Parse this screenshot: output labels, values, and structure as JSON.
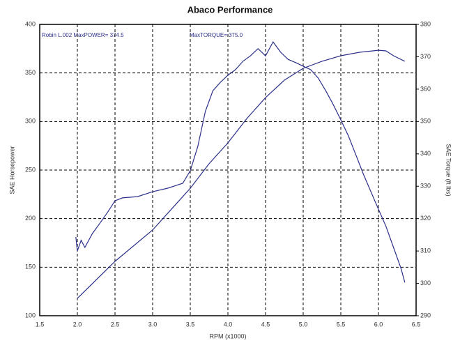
{
  "chart_data": {
    "type": "line",
    "title": "Abaco Performance",
    "x_label": "RPM (x1000)",
    "y_label": "SAE Horsepower",
    "y2_label": "SAE Torque (ft lbs)",
    "annotations": [
      "Robin L.002 MaxPOWER= 374.5",
      "MaxTORQUE= 375.0"
    ],
    "xlim": [
      1.5,
      6.5
    ],
    "xticks": [
      1.5,
      {
        "value": 2,
        "label": "2.0"
      },
      2.5,
      {
        "value": 3,
        "label": "3.0"
      },
      3.5,
      {
        "value": 4,
        "label": "4.0"
      },
      4.5,
      {
        "value": 5,
        "label": "5.0"
      },
      5.5,
      {
        "value": 6,
        "label": "6.0"
      },
      6.5
    ],
    "ylim": [
      100,
      400
    ],
    "yticks": [
      100,
      150,
      200,
      250,
      300,
      350,
      400
    ],
    "y2lim": [
      290,
      380
    ],
    "y2ticks": [
      290,
      300,
      310,
      320,
      330,
      340,
      350,
      360,
      370,
      380
    ],
    "grid": true,
    "series": [
      {
        "color": "#2b2f8a",
        "x": [
          2.0,
          2.5,
          3.0,
          3.5,
          3.75,
          4.0,
          4.25,
          4.5,
          4.75,
          5.0,
          5.25,
          5.5,
          5.75,
          6.0,
          6.1,
          6.2,
          6.35
        ],
        "values": [
          117.9,
          156,
          188.3,
          231.3,
          256.5,
          278,
          303,
          324.6,
          342.6,
          354.8,
          362,
          367.7,
          371.3,
          373.4,
          372.7,
          367.7,
          362
        ]
      },
      {
        "color": "#2b2f8a",
        "axis": "y2",
        "x": [
          1.98,
          2.0,
          2.05,
          2.1,
          2.2,
          2.3,
          2.4,
          2.5,
          2.6,
          2.8,
          3.0,
          3.2,
          3.4,
          3.5,
          3.6,
          3.7,
          3.8,
          3.9,
          4.0,
          4.1,
          4.2,
          4.3,
          4.4,
          4.45,
          4.5,
          4.6,
          4.7,
          4.8,
          4.9,
          5.0,
          5.1,
          5.2,
          5.3,
          5.4,
          5.5,
          5.6,
          5.7,
          5.8,
          5.9,
          6.0,
          6.1,
          6.2,
          6.3,
          6.35
        ],
        "values": [
          314.3,
          310.0,
          313.3,
          311.1,
          315.4,
          318.6,
          321.9,
          325.5,
          326.4,
          326.8,
          328.3,
          329.4,
          330.9,
          334.8,
          342.3,
          353.1,
          359.5,
          362.1,
          364.3,
          366.0,
          368.6,
          370.3,
          372.5,
          371.4,
          370.3,
          374.6,
          371.4,
          369.2,
          368.2,
          367.1,
          366.0,
          363.4,
          359.5,
          355.2,
          350.5,
          345.6,
          339.7,
          333.7,
          328.3,
          322.9,
          317.6,
          311.1,
          304.6,
          300.3
        ]
      }
    ]
  }
}
